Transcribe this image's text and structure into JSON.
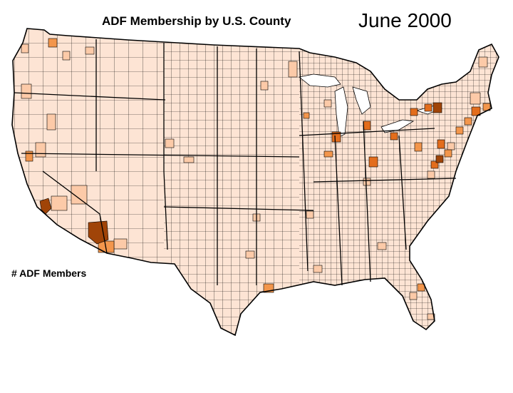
{
  "map": {
    "title": "ADF Membership by U.S. County",
    "date_label": "June 2000",
    "legend_title": "# ADF Members",
    "colors": {
      "none": "#fde4d4",
      "low": "#fccaa8",
      "medium": "#f3964c",
      "high": "#e36d1c",
      "highest": "#a04408",
      "border": "#000000"
    }
  }
}
